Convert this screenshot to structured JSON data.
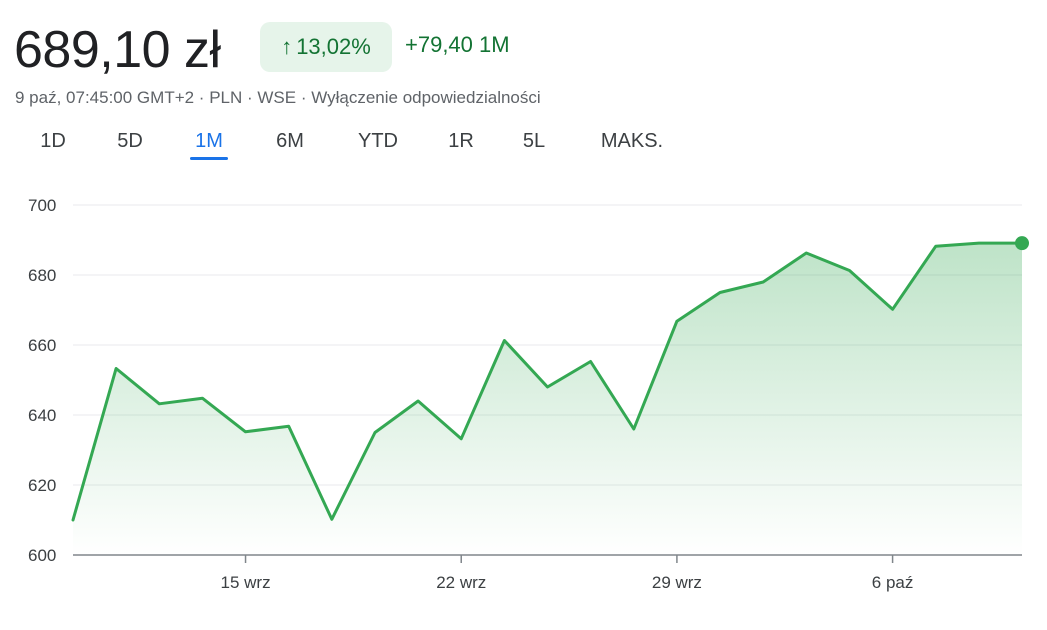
{
  "header": {
    "price": "689,10 zł",
    "change_pct": "13,02%",
    "change_arrow": "↑",
    "change_abs": "+79,40 1M",
    "meta": "9 paź, 07:45:00 GMT+2 · PLN · WSE · Wyłączenie odpowiedzialności"
  },
  "tabs": [
    {
      "label": "1D"
    },
    {
      "label": "5D"
    },
    {
      "label": "1M",
      "active": true
    },
    {
      "label": "6M"
    },
    {
      "label": "YTD"
    },
    {
      "label": "1R"
    },
    {
      "label": "5L"
    },
    {
      "label": "MAKS."
    }
  ],
  "colors": {
    "line": "#34a853",
    "fill": "#34a853",
    "accent": "#1a73e8",
    "positive": "#137333"
  },
  "chart_data": {
    "type": "area",
    "ylim": [
      600,
      700
    ],
    "yticks": [
      600,
      620,
      640,
      660,
      680,
      700
    ],
    "x": [
      "2024-09-09",
      "2024-09-10",
      "2024-09-11",
      "2024-09-12",
      "2024-09-13",
      "2024-09-16",
      "2024-09-17",
      "2024-09-18",
      "2024-09-19",
      "2024-09-20",
      "2024-09-23",
      "2024-09-24",
      "2024-09-25",
      "2024-09-26",
      "2024-09-27",
      "2024-09-30",
      "2024-10-01",
      "2024-10-02",
      "2024-10-03",
      "2024-10-04",
      "2024-10-07",
      "2024-10-08",
      "2024-10-09"
    ],
    "values": [
      610,
      653.3,
      643.2,
      644.8,
      635.2,
      636.8,
      610.2,
      635.0,
      644.0,
      633.2,
      661.3,
      648.0,
      655.3,
      636.0,
      666.8,
      675.0,
      678.0,
      686.3,
      681.3,
      670.2,
      688.2,
      689.1,
      689.1
    ],
    "xticks": [
      {
        "label": "15 wrz",
        "index": 4
      },
      {
        "label": "22 wrz",
        "index": 9
      },
      {
        "label": "29 wrz",
        "index": 14
      },
      {
        "label": "6 paź",
        "index": 19
      }
    ],
    "grid": true,
    "legend": "none"
  }
}
